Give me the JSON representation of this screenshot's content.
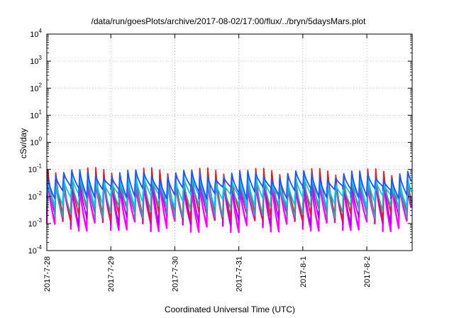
{
  "chart_data": {
    "type": "line",
    "title": "/data/run/goesPlots/archive/2017-08-02/17:00/flux/../bryn/5daysMars.plot",
    "xlabel": "Coordinated Universal Time (UTC)",
    "ylabel": "cSv/day",
    "yscale": "log",
    "ylim": [
      0.0001,
      10000
    ],
    "y_ticks": [
      {
        "base": "10",
        "exp": "-4",
        "value": 0.0001
      },
      {
        "base": "10",
        "exp": "-3",
        "value": 0.001
      },
      {
        "base": "10",
        "exp": "-2",
        "value": 0.01
      },
      {
        "base": "10",
        "exp": "-1",
        "value": 0.1
      },
      {
        "base": "10",
        "exp": "0",
        "value": 1
      },
      {
        "base": "10",
        "exp": "1",
        "value": 10
      },
      {
        "base": "10",
        "exp": "2",
        "value": 100
      },
      {
        "base": "10",
        "exp": "3",
        "value": 1000
      },
      {
        "base": "10",
        "exp": "4",
        "value": 10000
      }
    ],
    "x_ticks": [
      "2017-7-28",
      "2017-7-29",
      "2017-7-30",
      "2017-7-31",
      "2017-8-1",
      "2017-8-2"
    ],
    "x_range": [
      "2017-07-28 00:00",
      "2017-08-02 17:00"
    ],
    "grid": true,
    "legend": "none",
    "periods_per_day": 8,
    "series": [
      {
        "color": "#ff00ff",
        "peak": 0.05,
        "trough": 0.0012
      },
      {
        "color": "#aa00ee",
        "peak": 0.08,
        "trough": 0.002
      },
      {
        "color": "#dd2222",
        "peak": 0.12,
        "trough": 0.003
      },
      {
        "color": "#2ca8a0",
        "peak": 0.06,
        "trough": 0.004
      },
      {
        "color": "#00c8ff",
        "peak": 0.07,
        "trough": 0.01
      },
      {
        "color": "#2255ee",
        "peak": 0.1,
        "trough": 0.02
      }
    ]
  }
}
